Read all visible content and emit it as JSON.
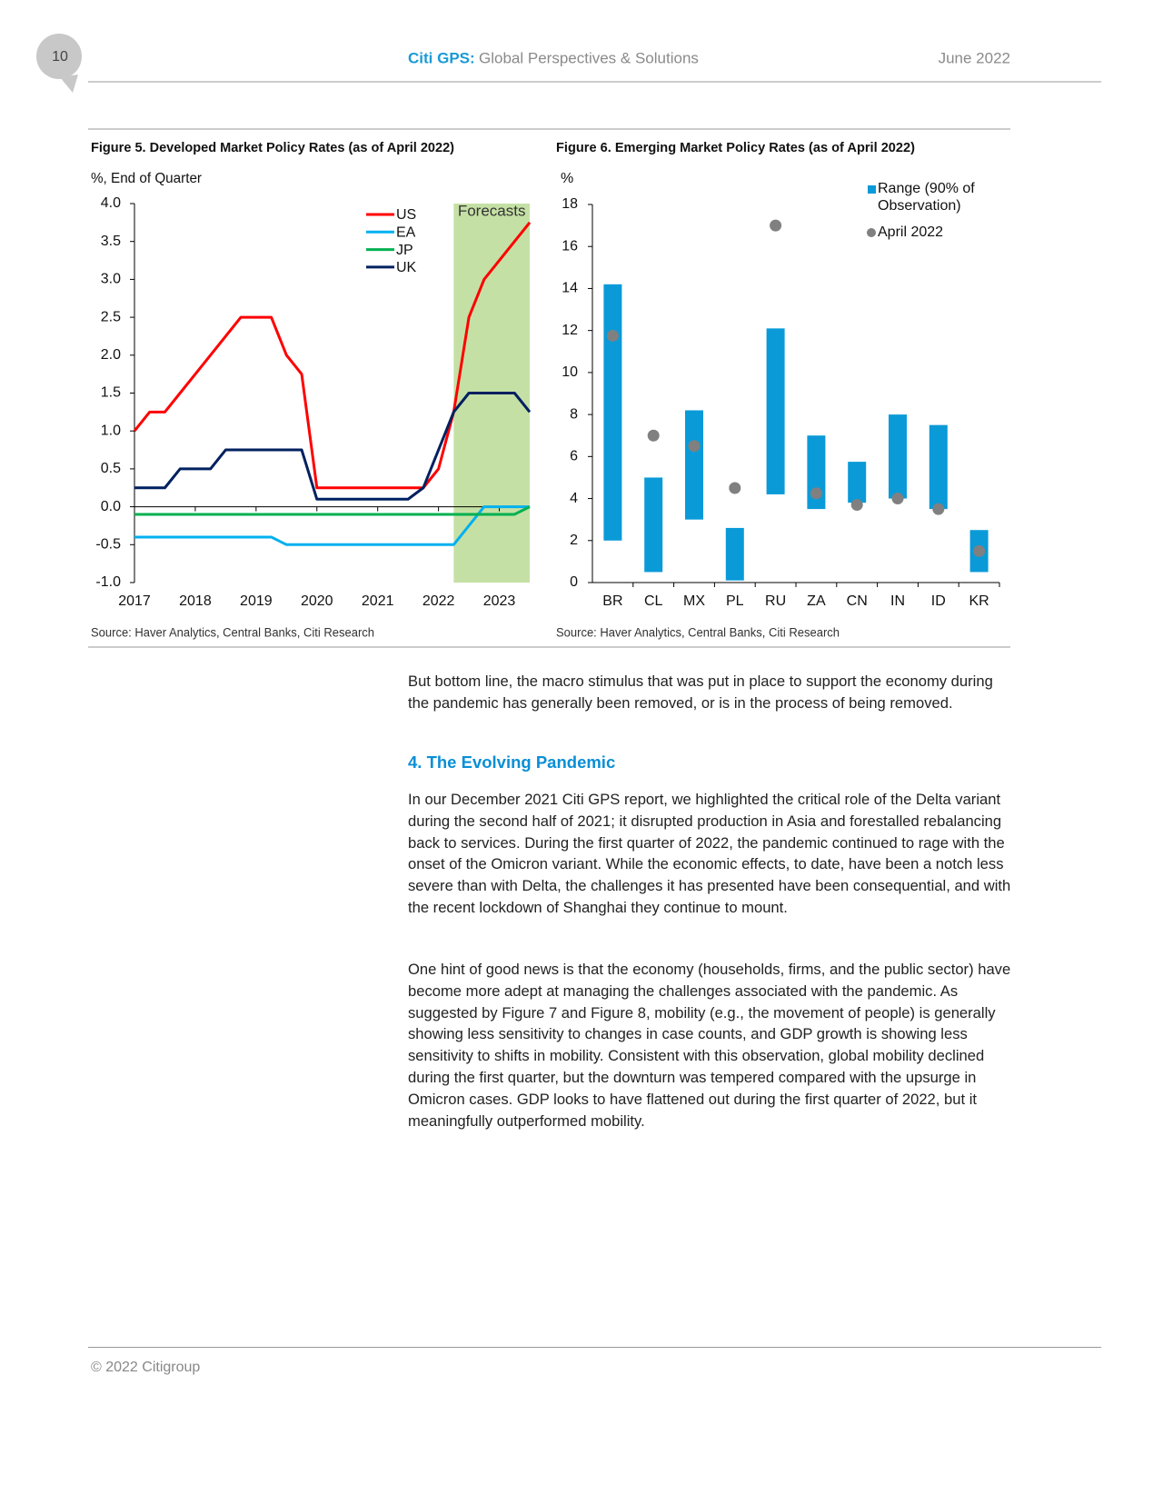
{
  "header": {
    "page_number": "10",
    "brand": "Citi GPS:",
    "subtitle": "Global Perspectives & Solutions",
    "date": "June 2022"
  },
  "chart_data": [
    {
      "type": "line",
      "title": "Figure 5. Developed Market Policy Rates (as of April 2022)",
      "y_label": "%, End of Quarter",
      "annotation": "Forecasts",
      "forecast_start": 2022.25,
      "forecast_color": "#c5e0a5",
      "source": "Source: Haver Analytics, Central Banks, Citi Research",
      "x": [
        2017,
        2017.25,
        2017.5,
        2017.75,
        2018,
        2018.25,
        2018.5,
        2018.75,
        2019,
        2019.25,
        2019.5,
        2019.75,
        2020,
        2020.25,
        2020.5,
        2020.75,
        2021,
        2021.25,
        2021.5,
        2021.75,
        2022,
        2022.25,
        2022.5,
        2022.75,
        2023,
        2023.25,
        2023.5
      ],
      "xlim": [
        2017,
        2023.5
      ],
      "xticks": [
        2017,
        2018,
        2019,
        2020,
        2021,
        2022,
        2023
      ],
      "ylim": [
        -1,
        4
      ],
      "yticks": [
        {
          "value": -1,
          "label": "-1.0"
        },
        -0.5,
        {
          "value": 0,
          "label": "0.0"
        },
        0.5,
        {
          "value": 1,
          "label": "1.0"
        },
        1.5,
        {
          "value": 2,
          "label": "2.0"
        },
        2.5,
        {
          "value": 3,
          "label": "3.0"
        },
        3.5,
        {
          "value": 4,
          "label": "4.0"
        }
      ],
      "series": [
        {
          "name": "US",
          "color": "#ff0000",
          "values": [
            1,
            1.25,
            1.25,
            1.5,
            1.75,
            2,
            2.25,
            2.5,
            2.5,
            2.5,
            2,
            1.75,
            0.25,
            0.25,
            0.25,
            0.25,
            0.25,
            0.25,
            0.25,
            0.25,
            0.5,
            1.25,
            2.5,
            3,
            3.25,
            3.5,
            3.75
          ]
        },
        {
          "name": "EA",
          "color": "#00b0f0",
          "values": [
            -0.4,
            -0.4,
            -0.4,
            -0.4,
            -0.4,
            -0.4,
            -0.4,
            -0.4,
            -0.4,
            -0.4,
            -0.5,
            -0.5,
            -0.5,
            -0.5,
            -0.5,
            -0.5,
            -0.5,
            -0.5,
            -0.5,
            -0.5,
            -0.5,
            -0.5,
            -0.25,
            0,
            0,
            0,
            0
          ]
        },
        {
          "name": "JP",
          "color": "#00b050",
          "values": [
            -0.1,
            -0.1,
            -0.1,
            -0.1,
            -0.1,
            -0.1,
            -0.1,
            -0.1,
            -0.1,
            -0.1,
            -0.1,
            -0.1,
            -0.1,
            -0.1,
            -0.1,
            -0.1,
            -0.1,
            -0.1,
            -0.1,
            -0.1,
            -0.1,
            -0.1,
            -0.1,
            -0.1,
            -0.1,
            -0.1,
            0
          ]
        },
        {
          "name": "UK",
          "color": "#002060",
          "values": [
            0.25,
            0.25,
            0.25,
            0.5,
            0.5,
            0.5,
            0.75,
            0.75,
            0.75,
            0.75,
            0.75,
            0.75,
            0.1,
            0.1,
            0.1,
            0.1,
            0.1,
            0.1,
            0.1,
            0.25,
            0.75,
            1.25,
            1.5,
            1.5,
            1.5,
            1.5,
            1.25
          ]
        }
      ]
    },
    {
      "type": "range",
      "title": "Figure 6. Emerging Market Policy Rates (as of April 2022)",
      "y_label": "%",
      "source": "Source: Haver Analytics, Central Banks, Citi Research",
      "categories": [
        "BR",
        "CL",
        "MX",
        "PL",
        "RU",
        "ZA",
        "CN",
        "IN",
        "ID",
        "KR"
      ],
      "ylim": [
        0,
        18
      ],
      "yticks": [
        0,
        2,
        4,
        6,
        8,
        10,
        12,
        14,
        16,
        18
      ],
      "series": [
        {
          "name": "Range (90% of Observation)",
          "color": "#0a9ad8",
          "low": [
            2,
            0.5,
            3,
            0.1,
            4.2,
            3.5,
            3.8,
            4,
            3.5,
            0.5
          ],
          "high": [
            14.2,
            5,
            8.2,
            2.6,
            12.1,
            7,
            5.75,
            8,
            7.5,
            2.5
          ]
        },
        {
          "name": "April 2022",
          "color": "#808080",
          "values": [
            11.75,
            7,
            6.5,
            4.5,
            17,
            4.25,
            3.7,
            4,
            3.5,
            1.5
          ]
        }
      ]
    }
  ],
  "body": {
    "paragraphs": [
      "But bottom line, the macro stimulus that was put in place to support the economy during the pandemic has generally been removed, or is in the process of being removed.",
      "In our December 2021 Citi GPS report, we highlighted the critical role of the Delta variant during the second half of 2021; it disrupted production in Asia and forestalled rebalancing back to services. During the first quarter of 2022, the pandemic continued to rage with the onset of the Omicron variant. While the economic effects, to date, have been a notch less severe than with Delta, the challenges it has presented have been consequential, and with the recent lockdown of Shanghai they continue to mount.",
      "One hint of good news is that the economy (households, firms, and the public sector) have become more adept at managing the challenges associated with the pandemic. As suggested by Figure 7 and Figure 8, mobility (e.g., the movement of people) is generally showing less sensitivity to changes in case counts, and GDP growth is showing less sensitivity to shifts in mobility. Consistent with this observation, global mobility declined during the first quarter, but the downturn was tempered compared with the upsurge in Omicron cases. GDP looks to have flattened out during the first quarter of 2022, but it meaningfully outperformed mobility."
    ],
    "heading": "4. The Evolving Pandemic"
  },
  "footer": {
    "copyright": "© 2022 Citigroup"
  }
}
